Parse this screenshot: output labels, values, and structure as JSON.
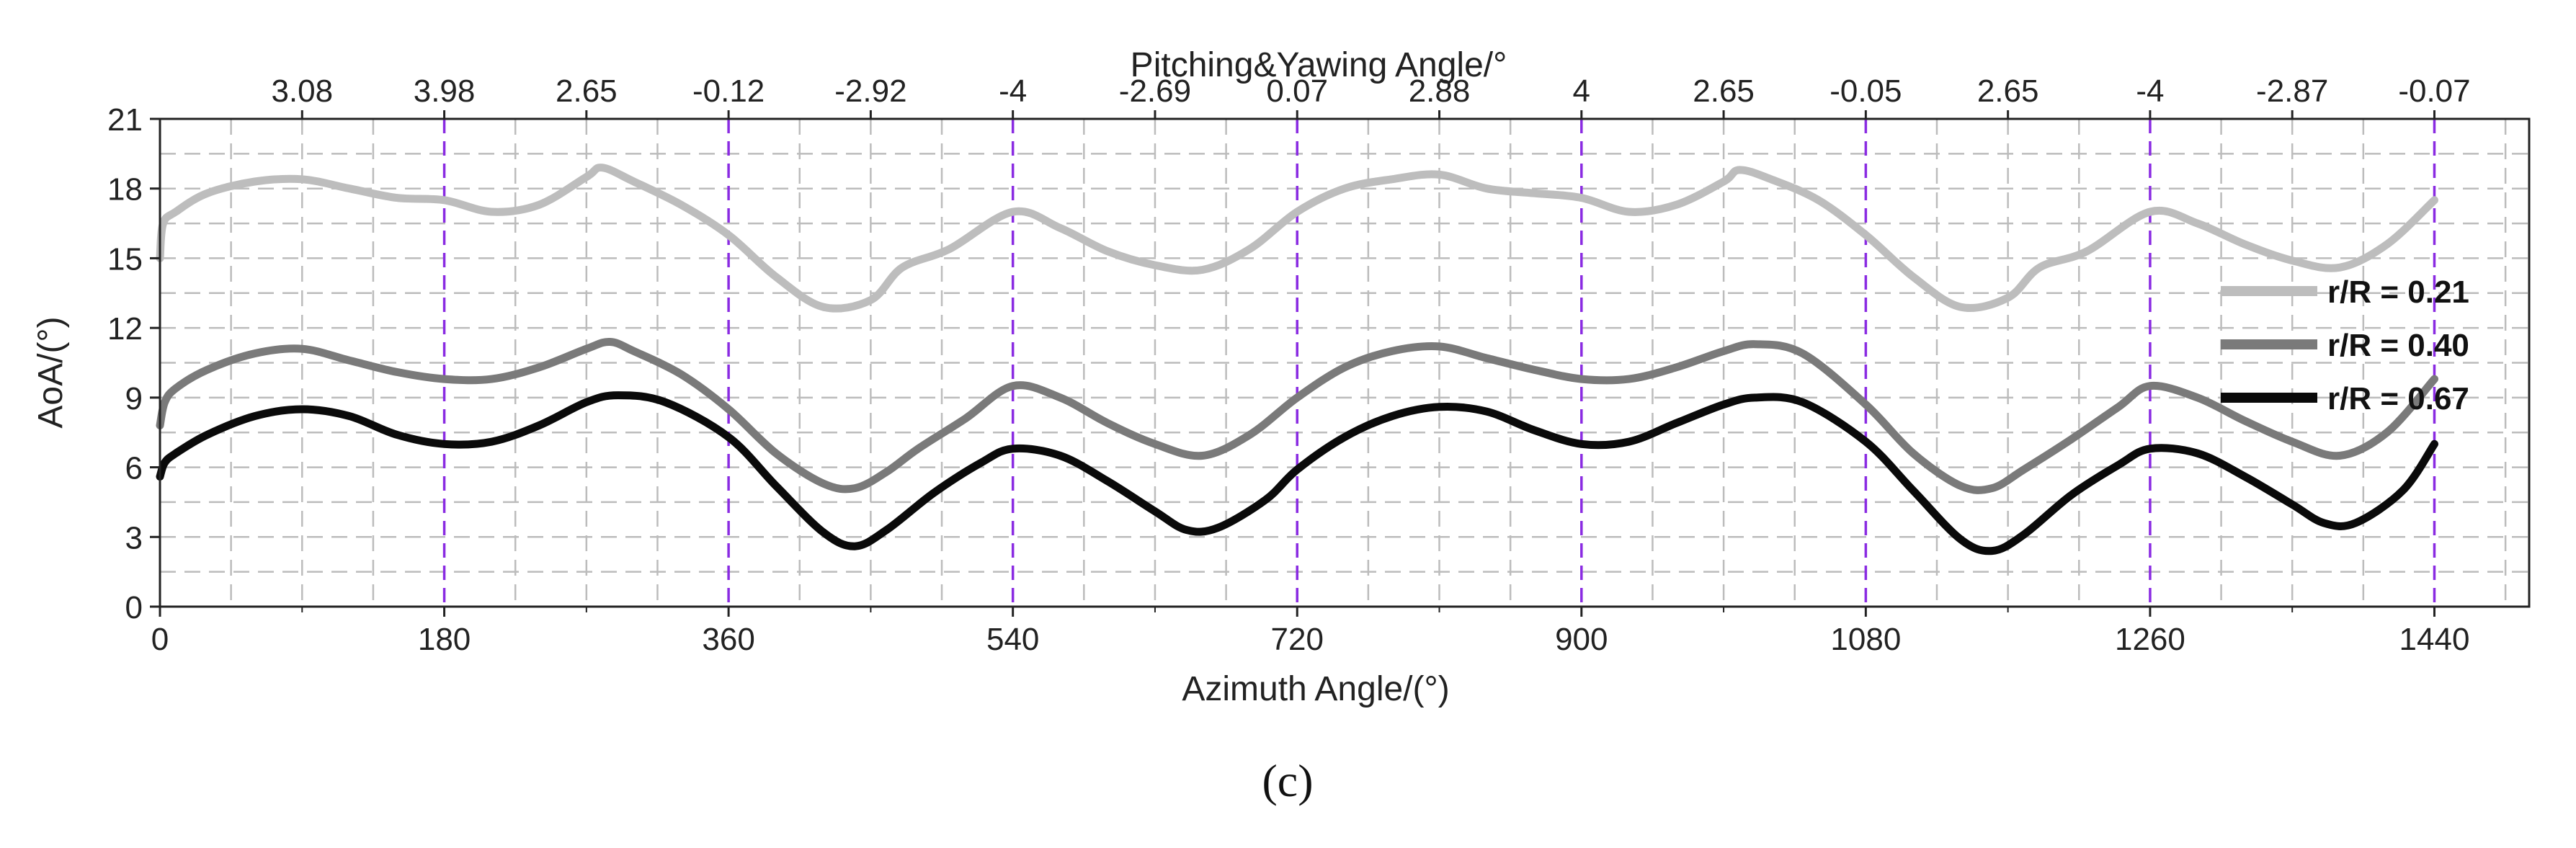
{
  "chart_data": {
    "type": "line",
    "title": "",
    "xlabel": "Azimuth Angle/(°)",
    "ylabel": "AoA/(°)",
    "top_axis_label": "Pitching&Yawing Angle/°",
    "caption": "(c)",
    "xlim": [
      0,
      1500
    ],
    "ylim": [
      0,
      21
    ],
    "x_ticks": [
      0,
      180,
      360,
      540,
      720,
      900,
      1080,
      1260,
      1440
    ],
    "x_tick_labels": [
      "0",
      "180",
      "360",
      "540",
      "720",
      "900",
      "1080",
      "1260",
      "1440"
    ],
    "y_ticks": [
      0,
      3,
      6,
      9,
      12,
      15,
      18,
      21
    ],
    "y_tick_labels": [
      "0",
      "3",
      "6",
      "9",
      "12",
      "15",
      "18",
      "21"
    ],
    "top_ticks": [
      {
        "x": 90,
        "label": "3.08"
      },
      {
        "x": 180,
        "label": "3.98"
      },
      {
        "x": 270,
        "label": "2.65"
      },
      {
        "x": 360,
        "label": "-0.12"
      },
      {
        "x": 450,
        "label": "-2.92"
      },
      {
        "x": 540,
        "label": "-4"
      },
      {
        "x": 630,
        "label": "-2.69"
      },
      {
        "x": 720,
        "label": "0.07"
      },
      {
        "x": 810,
        "label": "2.88"
      },
      {
        "x": 900,
        "label": "4"
      },
      {
        "x": 990,
        "label": "2.65"
      },
      {
        "x": 1080,
        "label": "-0.05"
      },
      {
        "x": 1170,
        "label": "2.65"
      },
      {
        "x": 1260,
        "label": "-4"
      },
      {
        "x": 1350,
        "label": "-2.87"
      },
      {
        "x": 1440,
        "label": "-0.07"
      }
    ],
    "reference_lines_x": [
      180,
      360,
      540,
      720,
      900,
      1080,
      1260,
      1440
    ],
    "grid": true,
    "legend_position": "right",
    "series": [
      {
        "name": "r/R = 0.21",
        "color": "#bdbdbd",
        "x": [
          0,
          2,
          10,
          30,
          60,
          90,
          120,
          150,
          180,
          210,
          240,
          270,
          280,
          300,
          330,
          360,
          390,
          420,
          450,
          470,
          500,
          540,
          570,
          600,
          630,
          660,
          690,
          720,
          750,
          780,
          810,
          840,
          870,
          900,
          930,
          960,
          990,
          1000,
          1020,
          1050,
          1080,
          1110,
          1140,
          1170,
          1190,
          1220,
          1260,
          1290,
          1320,
          1350,
          1380,
          1410,
          1440
        ],
        "values": [
          15.0,
          16.5,
          17.0,
          17.8,
          18.3,
          18.4,
          18.0,
          17.6,
          17.5,
          17.0,
          17.3,
          18.5,
          18.9,
          18.3,
          17.3,
          16.0,
          14.2,
          12.9,
          13.2,
          14.6,
          15.4,
          17.0,
          16.3,
          15.3,
          14.7,
          14.5,
          15.4,
          17.0,
          18.0,
          18.4,
          18.6,
          18.0,
          17.8,
          17.6,
          17.0,
          17.3,
          18.3,
          18.8,
          18.4,
          17.5,
          16.0,
          14.2,
          12.9,
          13.3,
          14.6,
          15.3,
          17.0,
          16.5,
          15.6,
          14.9,
          14.6,
          15.6,
          17.5
        ]
      },
      {
        "name": "r/R = 0.40",
        "color": "#7a7a7a",
        "x": [
          0,
          3,
          10,
          30,
          60,
          90,
          120,
          150,
          180,
          210,
          240,
          270,
          285,
          300,
          330,
          360,
          390,
          420,
          440,
          460,
          480,
          510,
          540,
          570,
          600,
          630,
          660,
          690,
          720,
          750,
          780,
          810,
          840,
          870,
          900,
          930,
          960,
          990,
          1010,
          1040,
          1080,
          1110,
          1140,
          1160,
          1180,
          1210,
          1240,
          1260,
          1290,
          1320,
          1350,
          1380,
          1410,
          1440
        ],
        "values": [
          7.8,
          8.8,
          9.4,
          10.2,
          10.9,
          11.1,
          10.6,
          10.1,
          9.8,
          9.8,
          10.3,
          11.1,
          11.4,
          11.0,
          10.0,
          8.5,
          6.6,
          5.3,
          5.1,
          5.8,
          6.8,
          8.1,
          9.5,
          9.0,
          7.9,
          7.0,
          6.5,
          7.4,
          9.0,
          10.3,
          11.0,
          11.2,
          10.7,
          10.2,
          9.8,
          9.8,
          10.3,
          11.0,
          11.3,
          10.9,
          8.7,
          6.6,
          5.2,
          5.1,
          5.9,
          7.2,
          8.6,
          9.5,
          9.0,
          8.0,
          7.1,
          6.5,
          7.5,
          9.8
        ]
      },
      {
        "name": "r/R = 0.67",
        "color": "#0a0a0a",
        "x": [
          0,
          3,
          10,
          30,
          60,
          90,
          120,
          150,
          180,
          210,
          240,
          270,
          290,
          320,
          360,
          390,
          420,
          440,
          460,
          490,
          520,
          540,
          570,
          600,
          630,
          650,
          670,
          700,
          720,
          750,
          780,
          810,
          840,
          870,
          900,
          930,
          960,
          990,
          1010,
          1040,
          1080,
          1110,
          1140,
          1160,
          1180,
          1210,
          1240,
          1260,
          1290,
          1320,
          1350,
          1370,
          1390,
          1420,
          1440
        ],
        "values": [
          5.6,
          6.2,
          6.6,
          7.4,
          8.2,
          8.5,
          8.2,
          7.4,
          7.0,
          7.1,
          7.8,
          8.8,
          9.1,
          8.8,
          7.3,
          5.2,
          3.2,
          2.6,
          3.3,
          4.9,
          6.2,
          6.8,
          6.5,
          5.4,
          4.1,
          3.3,
          3.4,
          4.6,
          5.9,
          7.3,
          8.2,
          8.6,
          8.4,
          7.6,
          7.0,
          7.1,
          7.9,
          8.7,
          9.0,
          8.8,
          7.1,
          5.0,
          2.9,
          2.4,
          3.1,
          4.8,
          6.1,
          6.8,
          6.6,
          5.6,
          4.4,
          3.6,
          3.6,
          5.0,
          7.0
        ]
      }
    ]
  }
}
